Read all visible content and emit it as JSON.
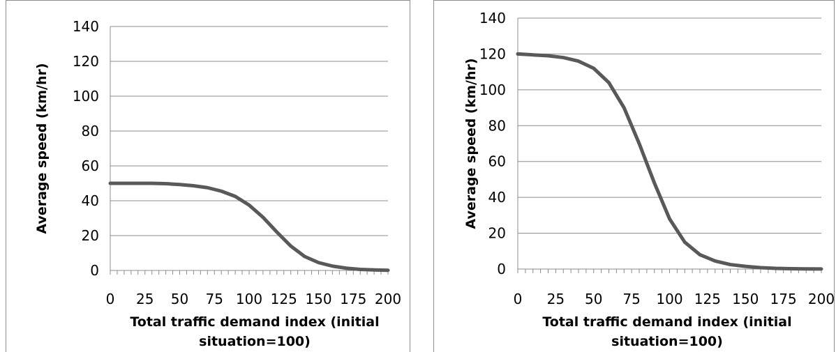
{
  "chart_data": [
    {
      "type": "line",
      "title": "",
      "xlabel": "Total traffic demand index (initial situation=100)",
      "xlabel_lines": [
        "Total traffic demand index (initial",
        "situation=100)"
      ],
      "ylabel": "Average speed (km/hr)",
      "xlim": [
        0,
        200
      ],
      "ylim": [
        0,
        140
      ],
      "x_ticks": [
        "0",
        "25",
        "50",
        "75",
        "100",
        "125",
        "150",
        "175",
        "200"
      ],
      "y_ticks": [
        "0",
        "20",
        "40",
        "60",
        "80",
        "100",
        "120",
        "140"
      ],
      "grid": "horizontal",
      "series": [
        {
          "color": "#595959",
          "x": [
            0,
            10,
            20,
            30,
            40,
            50,
            60,
            70,
            80,
            90,
            100,
            110,
            120,
            130,
            140,
            150,
            160,
            170,
            180,
            190,
            200
          ],
          "y": [
            50,
            50,
            50,
            50,
            49.8,
            49.3,
            48.6,
            47.5,
            45.5,
            42.5,
            37.5,
            30.5,
            22,
            14,
            8,
            4.5,
            2.5,
            1.3,
            0.6,
            0.3,
            0.1
          ]
        }
      ]
    },
    {
      "type": "line",
      "title": "",
      "xlabel": "Total traffic demand index (initial situation=100)",
      "xlabel_lines": [
        "Total traffic demand index (initial",
        "situation=100)"
      ],
      "ylabel": "Average speed (km/hr)",
      "xlim": [
        0,
        200
      ],
      "ylim": [
        0,
        140
      ],
      "x_ticks": [
        "0",
        "25",
        "50",
        "75",
        "100",
        "125",
        "150",
        "175",
        "200"
      ],
      "y_ticks": [
        "0",
        "20",
        "40",
        "60",
        "80",
        "100",
        "120",
        "140"
      ],
      "grid": "horizontal",
      "series": [
        {
          "color": "#595959",
          "x": [
            0,
            10,
            20,
            30,
            40,
            50,
            60,
            70,
            80,
            90,
            100,
            110,
            120,
            130,
            140,
            150,
            160,
            170,
            180,
            190,
            200
          ],
          "y": [
            120,
            119.5,
            119,
            118,
            116,
            112,
            104,
            90,
            70,
            48,
            28,
            15,
            8,
            4.5,
            2.5,
            1.5,
            0.8,
            0.4,
            0.2,
            0.1,
            0.05
          ]
        }
      ]
    }
  ]
}
